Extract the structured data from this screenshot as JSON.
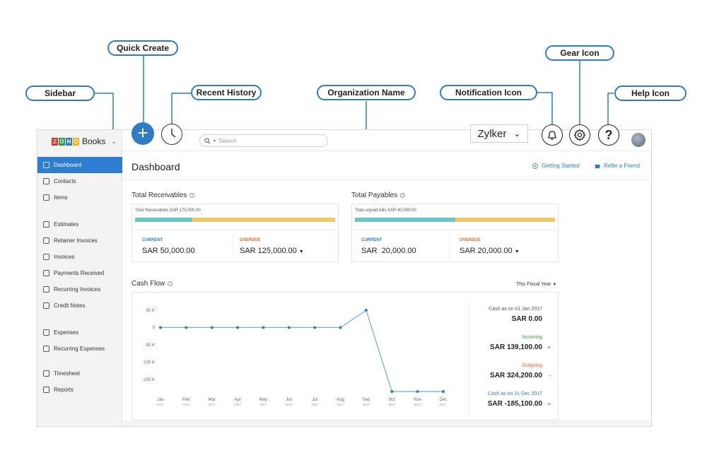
{
  "callouts": {
    "quick_create": "Quick Create",
    "sidebar": "Sidebar",
    "recent_history": "Recent History",
    "organization_name": "Organization Name",
    "notification_icon": "Notification Icon",
    "gear_icon": "Gear Icon",
    "help_icon": "Help Icon"
  },
  "app": {
    "logo_letters": [
      "Z",
      "O",
      "H",
      "O"
    ],
    "logo_colors": [
      "#e5342a",
      "#2f9a48",
      "#2f7cc4",
      "#f2b31a"
    ],
    "product": "Books",
    "search_placeholder": "Search",
    "org_name": "Zylker",
    "accent": "#2d7dd2"
  },
  "sidebar": {
    "items": [
      {
        "label": "Dashboard",
        "icon": "dashboard-icon",
        "active": true
      },
      {
        "label": "Contacts",
        "icon": "contacts-icon"
      },
      {
        "label": "Items",
        "icon": "items-icon"
      },
      {
        "label": "Estimates",
        "icon": "estimates-icon"
      },
      {
        "label": "Retainer Invoices",
        "icon": "retainer-invoices-icon"
      },
      {
        "label": "Invoices",
        "icon": "invoices-icon"
      },
      {
        "label": "Payments Received",
        "icon": "payments-received-icon"
      },
      {
        "label": "Recurring Invoices",
        "icon": "recurring-invoices-icon"
      },
      {
        "label": "Credit Notes",
        "icon": "credit-notes-icon"
      },
      {
        "label": "Expenses",
        "icon": "expenses-icon"
      },
      {
        "label": "Recurring Expenses",
        "icon": "recurring-expenses-icon"
      },
      {
        "label": "Timesheet",
        "icon": "timesheet-icon"
      },
      {
        "label": "Reports",
        "icon": "reports-icon"
      }
    ]
  },
  "main": {
    "title": "Dashboard",
    "getting_started": "Getting Started",
    "refer_friend": "Refer a Friend",
    "receivables": {
      "title": "Total Receivables",
      "caption": "Total Receivables SAR 175,000.00",
      "current_label": "CURRENT",
      "current_amount": "SAR 50,000.00",
      "overdue_label": "OVERDUE",
      "overdue_amount": "SAR 125,000.00",
      "current_fraction": 0.286
    },
    "payables": {
      "title": "Total Payables",
      "caption": "Total unpaid bills SAR 40,000.00",
      "current_label": "CURRENT",
      "current_amount": "SAR  20,000.00",
      "overdue_label": "OVERDUE",
      "overdue_amount": "SAR 20,000.00",
      "current_fraction": 0.5
    },
    "cash_flow": {
      "title": "Cash Flow",
      "period": "This Fiscal Year",
      "stats": [
        {
          "label": "Cash as on 01 Jan 2017",
          "value": "SAR 0.00",
          "color": "#555555",
          "sign": ""
        },
        {
          "label": "Incoming",
          "value": "SAR 139,100.00",
          "color": "#3a9a48",
          "sign": "+"
        },
        {
          "label": "Outgoing",
          "value": "SAR 324,200.00",
          "color": "#e8672e",
          "sign": "-"
        },
        {
          "label": "Cash as on 31 Dec 2017",
          "value": "SAR -185,100.00",
          "color": "#2f7cc4",
          "sign": "="
        }
      ]
    }
  },
  "chart_data": {
    "type": "line",
    "categories": [
      "Jan 2017",
      "Feb 2017",
      "Mar 2017",
      "Apr 2017",
      "May 2017",
      "Jun 2017",
      "Jul 2017",
      "Aug 2017",
      "Sep 2017",
      "Oct 2017",
      "Nov 2017",
      "Dec 2017"
    ],
    "tick_month": [
      "Jan",
      "Feb",
      "Mar",
      "Apr",
      "May",
      "Jun",
      "Jul",
      "Aug",
      "Sep",
      "Oct",
      "Nov",
      "Dec"
    ],
    "tick_year": "2017",
    "values": [
      0,
      0,
      0,
      0,
      0,
      0,
      0,
      0,
      50000,
      -185100,
      -185100,
      -185100
    ],
    "y_ticks": [
      "50 K",
      "0",
      "-50 K",
      "-100 K",
      "-150 K"
    ],
    "y_tick_values": [
      50000,
      0,
      -50000,
      -100000,
      -150000
    ],
    "ylim": [
      -185100,
      50000
    ],
    "color": "#6aaee0",
    "grid": false
  }
}
